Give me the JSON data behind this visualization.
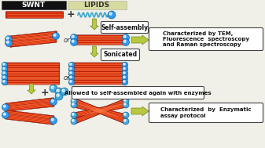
{
  "bg_color": "#f0efe8",
  "swnt_label": "SWNT",
  "lipids_label": "LIPIDS",
  "swnt_box_color": "#111111",
  "lipids_box_color": "#d8dba0",
  "nanotube_color_outer": "#cc2200",
  "nanotube_color_inner": "#ff6633",
  "lipid_wave_color": "#44aacc",
  "bead_color": "#3399ee",
  "arrow_fill": "#b8c840",
  "arrow_edge": "#7a8820",
  "box_outline": "#444444",
  "text_color": "#111111",
  "self_assembly_text": "Self-assembly",
  "sonicated_text": "Sonicated",
  "char1_text": "Characterized by TEM,\nFluorescence  spectroscopy\nand Raman spectroscopy",
  "allowed_text": "Allowed to self-assembled again with enzymes",
  "char2_text": "Characterized  by  Enzymatic\nassay protocol",
  "or_text": "or"
}
